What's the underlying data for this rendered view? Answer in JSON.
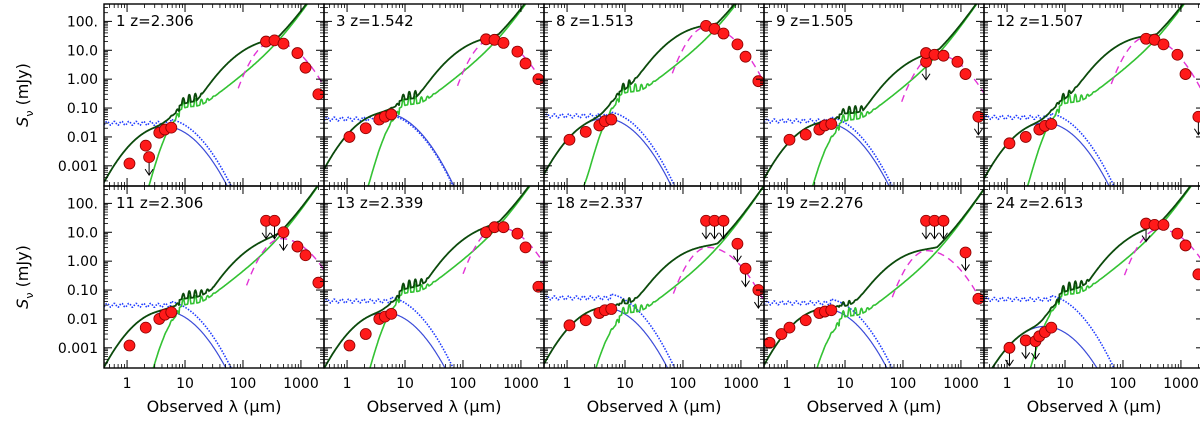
{
  "chart_data": {
    "type": "line",
    "title": "",
    "xlabel": "Observed λ (μm)",
    "ylabel": "S_ν (mJy)",
    "xscale": "log",
    "yscale": "log",
    "xlim": [
      0.4,
      2500
    ],
    "ylim": [
      0.0002,
      400
    ],
    "xtick_labels": [
      "1",
      "10",
      "100",
      "1000"
    ],
    "ytick_labels": [
      "0.001",
      "0.01",
      "0.10",
      "1.00",
      "10.0",
      "100."
    ],
    "layout": "2 rows x 5 columns",
    "series_legend": {
      "total_model": "dark green solid",
      "starburst_template": "light green solid",
      "stellar_component": "blue",
      "stellar_template_full": "blue dotted",
      "cold_dust": "magenta dashed",
      "photometry": "red circles",
      "upper_limits": "arrows"
    },
    "panels": [
      {
        "id": "1",
        "z": "2.306",
        "label": "1  z=2.306",
        "fir_peak": 20,
        "peak_lambda": 330,
        "photometry": [
          [
            1.1,
            0.0012
          ],
          [
            2.1,
            0.005
          ],
          [
            3.6,
            0.014
          ],
          [
            4.5,
            0.018
          ],
          [
            5.8,
            0.021
          ],
          [
            250,
            20
          ],
          [
            350,
            22
          ],
          [
            500,
            17
          ],
          [
            870,
            8
          ],
          [
            1200,
            2.5
          ],
          [
            2000,
            0.3
          ]
        ],
        "upper_limits": [
          [
            2.4,
            0.002
          ]
        ]
      },
      {
        "id": "3",
        "z": "1.542",
        "label": "3  z=1.542",
        "fir_peak": 24,
        "peak_lambda": 320,
        "photometry": [
          [
            1.1,
            0.01
          ],
          [
            2.1,
            0.02
          ],
          [
            3.6,
            0.04
          ],
          [
            4.5,
            0.05
          ],
          [
            5.8,
            0.06
          ],
          [
            250,
            24
          ],
          [
            350,
            23
          ],
          [
            500,
            18
          ],
          [
            870,
            9
          ],
          [
            1200,
            3.5
          ],
          [
            2000,
            1.0
          ]
        ],
        "upper_limits": []
      },
      {
        "id": "8",
        "z": "1.513",
        "label": "8  z=1.513",
        "fir_peak": 65,
        "peak_lambda": 260,
        "photometry": [
          [
            1.1,
            0.008
          ],
          [
            2.1,
            0.015
          ],
          [
            3.6,
            0.025
          ],
          [
            4.5,
            0.035
          ],
          [
            5.8,
            0.04
          ],
          [
            250,
            70
          ],
          [
            350,
            55
          ],
          [
            500,
            38
          ],
          [
            870,
            16
          ],
          [
            1200,
            6
          ],
          [
            2000,
            0.85
          ]
        ],
        "upper_limits": []
      },
      {
        "id": "9",
        "z": "1.505",
        "label": "9  z=1.505",
        "fir_peak": 7,
        "peak_lambda": 380,
        "photometry": [
          [
            1.1,
            0.008
          ],
          [
            2.1,
            0.012
          ],
          [
            3.6,
            0.018
          ],
          [
            4.5,
            0.025
          ],
          [
            5.8,
            0.028
          ],
          [
            250,
            8
          ],
          [
            350,
            7
          ],
          [
            500,
            6.5
          ],
          [
            870,
            4
          ],
          [
            1200,
            1.5
          ]
        ],
        "upper_limits": [
          [
            250,
            4
          ],
          [
            2000,
            0.05
          ]
        ]
      },
      {
        "id": "12",
        "z": "1.507",
        "label": "12  z=1.507",
        "fir_peak": 28,
        "peak_lambda": 250,
        "photometry": [
          [
            1.1,
            0.006
          ],
          [
            2.1,
            0.01
          ],
          [
            3.6,
            0.018
          ],
          [
            4.5,
            0.024
          ],
          [
            5.8,
            0.028
          ],
          [
            250,
            25
          ],
          [
            350,
            23
          ],
          [
            500,
            16
          ],
          [
            870,
            7
          ],
          [
            1200,
            1.5
          ]
        ],
        "upper_limits": [
          [
            2000,
            0.05
          ]
        ]
      },
      {
        "id": "11",
        "z": "2.306",
        "label": "11  z=2.306",
        "fir_peak": 6,
        "peak_lambda": 460,
        "photometry": [
          [
            1.1,
            0.0012
          ],
          [
            2.1,
            0.005
          ],
          [
            3.6,
            0.01
          ],
          [
            4.5,
            0.014
          ],
          [
            5.8,
            0.017
          ],
          [
            870,
            3.2
          ],
          [
            1200,
            1.6
          ],
          [
            2000,
            0.18
          ]
        ],
        "upper_limits": [
          [
            250,
            25
          ],
          [
            350,
            25
          ],
          [
            500,
            10
          ]
        ]
      },
      {
        "id": "13",
        "z": "2.339",
        "label": "13  z=2.339",
        "fir_peak": 15,
        "peak_lambda": 400,
        "photometry": [
          [
            1.1,
            0.0012
          ],
          [
            2.1,
            0.003
          ],
          [
            3.6,
            0.01
          ],
          [
            4.5,
            0.012
          ],
          [
            5.8,
            0.015
          ],
          [
            250,
            10
          ],
          [
            350,
            15
          ],
          [
            500,
            15
          ],
          [
            870,
            9
          ],
          [
            1200,
            3
          ],
          [
            2000,
            0.13
          ]
        ],
        "upper_limits": []
      },
      {
        "id": "18",
        "z": "2.337",
        "label": "18  z=2.337",
        "fir_peak": 3,
        "peak_lambda": 270,
        "photometry": [
          [
            1.1,
            0.006
          ],
          [
            2.1,
            0.009
          ],
          [
            3.6,
            0.016
          ],
          [
            4.5,
            0.02
          ],
          [
            5.8,
            0.022
          ]
        ],
        "upper_limits": [
          [
            250,
            25
          ],
          [
            350,
            25
          ],
          [
            500,
            25
          ],
          [
            870,
            4
          ],
          [
            1200,
            0.55
          ],
          [
            2000,
            0.1
          ]
        ]
      },
      {
        "id": "19",
        "z": "2.276",
        "label": "19  z=2.276",
        "fir_peak": 2.3,
        "peak_lambda": 260,
        "photometry": [
          [
            0.5,
            0.0015
          ],
          [
            0.8,
            0.003
          ],
          [
            1.1,
            0.005
          ],
          [
            2.1,
            0.009
          ],
          [
            3.6,
            0.016
          ],
          [
            4.5,
            0.018
          ],
          [
            5.8,
            0.02
          ],
          [
            2000,
            0.05
          ]
        ],
        "upper_limits": [
          [
            250,
            25
          ],
          [
            350,
            25
          ],
          [
            500,
            25
          ],
          [
            1200,
            2
          ]
        ]
      },
      {
        "id": "24",
        "z": "2.613",
        "label": "24  z=2.613",
        "fir_peak": 13,
        "peak_lambda": 420,
        "photometry": [
          [
            3.6,
            0.0025
          ],
          [
            4.5,
            0.0035
          ],
          [
            5.8,
            0.005
          ],
          [
            350,
            18
          ],
          [
            500,
            18
          ],
          [
            870,
            9
          ],
          [
            1200,
            3.5
          ],
          [
            2000,
            0.35
          ]
        ],
        "upper_limits": [
          [
            1.1,
            0.001
          ],
          [
            2.1,
            0.0018
          ],
          [
            3.1,
            0.0017
          ],
          [
            250,
            20
          ]
        ]
      }
    ]
  }
}
